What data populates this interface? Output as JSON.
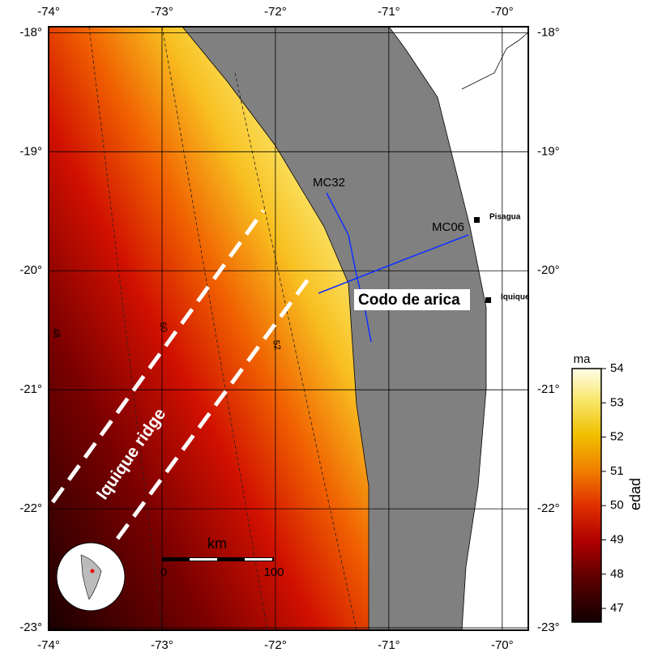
{
  "map": {
    "lon_range": [
      -74,
      -69.77
    ],
    "lat_range": [
      -17.95,
      -23.02
    ],
    "lon_ticks": [
      {
        "value": -74,
        "label": "-74°"
      },
      {
        "value": -73,
        "label": "-73°"
      },
      {
        "value": -72,
        "label": "-72°"
      },
      {
        "value": -71,
        "label": "-71°"
      },
      {
        "value": -70,
        "label": "-70°"
      }
    ],
    "lat_ticks": [
      {
        "value": -18,
        "label": "-18°"
      },
      {
        "value": -19,
        "label": "-19°"
      },
      {
        "value": -20,
        "label": "-20°"
      },
      {
        "value": -21,
        "label": "-21°"
      },
      {
        "value": -22,
        "label": "-22°"
      },
      {
        "value": -23,
        "label": "-23°"
      }
    ],
    "lines": [
      "MC32",
      "MC06"
    ],
    "towns": [
      "Pisagua",
      "Iquique"
    ],
    "annotations": [
      "Codo de arica",
      "Iquique ridge"
    ],
    "contour_labels": [
      "48",
      "50",
      "52"
    ],
    "scale_bar": {
      "unit": "km",
      "labels": [
        "0",
        "100"
      ]
    }
  },
  "colorbar": {
    "unit": "ma",
    "label": "edad",
    "range": [
      46.6,
      54
    ],
    "ticks": [
      47,
      48,
      49,
      50,
      51,
      52,
      53,
      54
    ]
  }
}
